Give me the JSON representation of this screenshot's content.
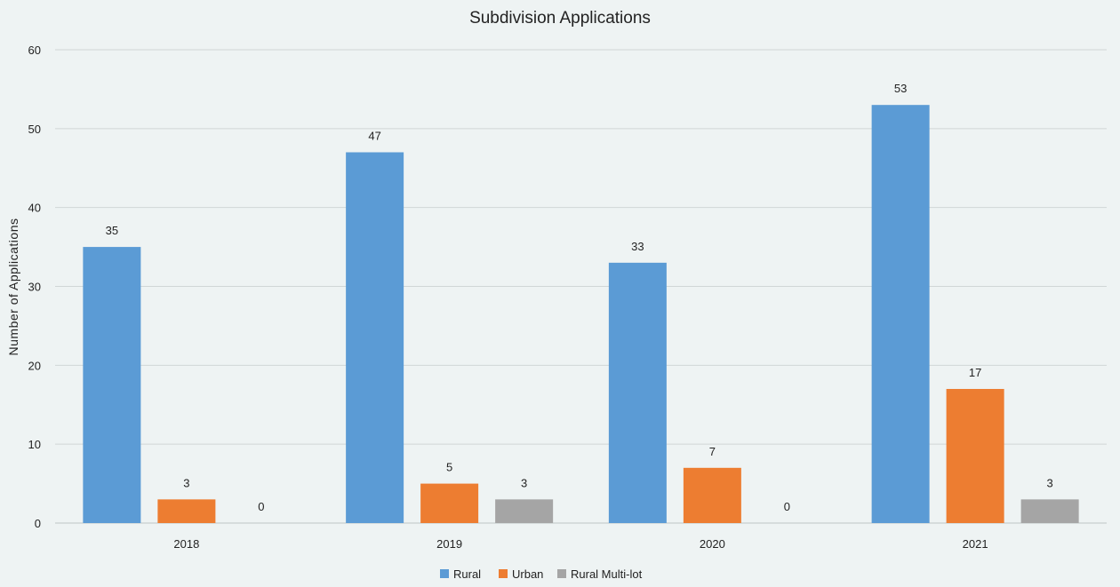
{
  "chart_data": {
    "type": "bar",
    "title": "Subdivision Applications",
    "xlabel": "",
    "ylabel": "Number of Applications",
    "categories": [
      "2018",
      "2019",
      "2020",
      "2021"
    ],
    "series": [
      {
        "name": "Rural",
        "values": [
          35,
          47,
          33,
          53
        ],
        "color": "#5b9bd5"
      },
      {
        "name": "Urban",
        "values": [
          3,
          5,
          7,
          17
        ],
        "color": "#ed7d31"
      },
      {
        "name": "Rural Multi-lot",
        "values": [
          0,
          3,
          0,
          3
        ],
        "color": "#a5a5a5"
      }
    ],
    "ylim": [
      0,
      60
    ],
    "yticks": [
      0,
      10,
      20,
      30,
      40,
      50,
      60
    ],
    "grid": true,
    "legend_position": "bottom"
  },
  "colors": {
    "background": "#eef3f3",
    "gridline": "#d0d6d6",
    "axis": "#bfc6c6"
  }
}
